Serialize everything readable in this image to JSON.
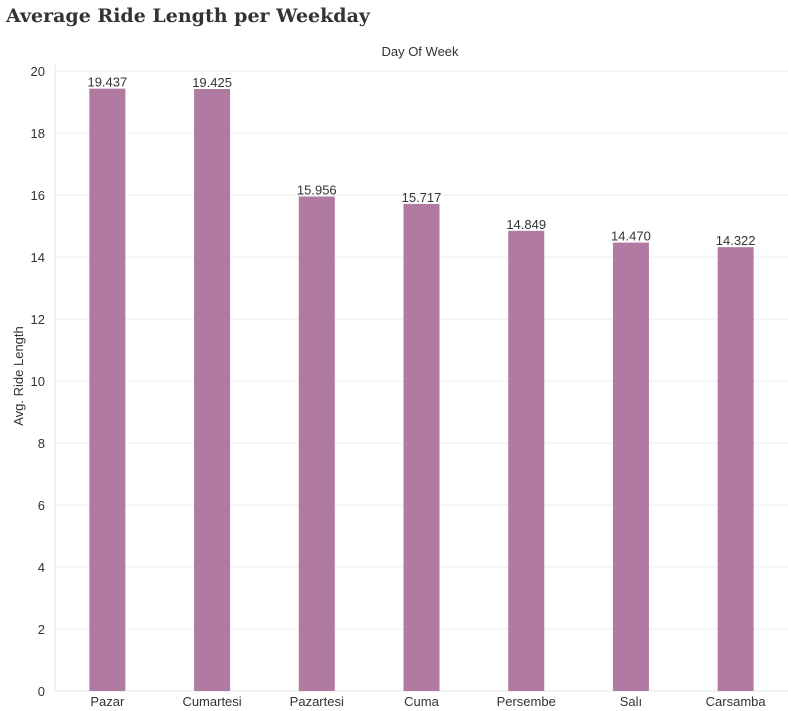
{
  "chart_data": {
    "type": "bar",
    "title": "Average Ride Length per Weekday",
    "xlabel": "Day Of Week",
    "ylabel": "Avg. Ride Length",
    "categories": [
      "Pazar",
      "Cumartesi",
      "Pazartesi",
      "Cuma",
      "Persembe",
      "Salı",
      "Carsamba"
    ],
    "values": [
      19.437,
      19.425,
      15.956,
      15.717,
      14.849,
      14.47,
      14.322
    ],
    "data_labels": [
      "19.437",
      "19.425",
      "15.956",
      "15.717",
      "14.849",
      "14.470",
      "14.322"
    ],
    "yticks": [
      0,
      2,
      4,
      6,
      8,
      10,
      12,
      14,
      16,
      18,
      20
    ],
    "ylim": [
      0,
      20.2
    ],
    "grid": true,
    "x_axis_position": "top",
    "bar_color": "#b07aa1",
    "grid_color": "#eeeeee"
  }
}
